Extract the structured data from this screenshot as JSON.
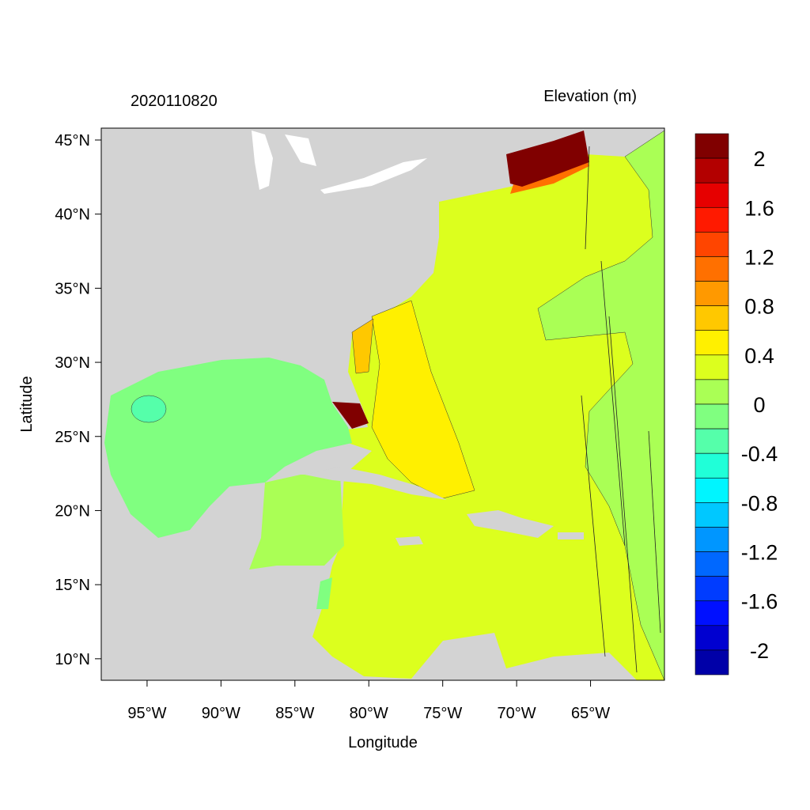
{
  "chart_data": {
    "type": "heatmap",
    "title_left": "2020110820",
    "title_right": "Elevation (m)",
    "xlabel": "Longitude",
    "ylabel": "Latitude",
    "xlim": [
      -98.1,
      -60.0
    ],
    "ylim": [
      8.55,
      45.8
    ],
    "x_ticks": [
      -95,
      -90,
      -85,
      -80,
      -75,
      -70,
      -65
    ],
    "x_tick_labels": [
      "95°W",
      "90°W",
      "85°W",
      "80°W",
      "75°W",
      "70°W",
      "65°W"
    ],
    "y_ticks": [
      45,
      40,
      35,
      30,
      25,
      20,
      15,
      10
    ],
    "y_tick_labels": [
      "45°N",
      "40°N",
      "35°N",
      "30°N",
      "25°N",
      "20°N",
      "15°N",
      "10°N"
    ],
    "land_color": "#d3d3d3",
    "colorbar": {
      "colors": [
        "#800000",
        "#b30000",
        "#e60000",
        "#ff1a00",
        "#ff4500",
        "#ff7000",
        "#ff9900",
        "#ffc800",
        "#fff000",
        "#dcff1e",
        "#aaff55",
        "#80ff80",
        "#55ffaa",
        "#20ffd8",
        "#00f5ff",
        "#00c8ff",
        "#0096ff",
        "#0068ff",
        "#003cff",
        "#0010ff",
        "#0000d0",
        "#0000a8"
      ],
      "labels": [
        "2",
        "1.6",
        "1.2",
        "0.8",
        "0.4",
        "0",
        "-0.4",
        "-0.8",
        "-1.2",
        "-1.6",
        "-2"
      ],
      "label_values": [
        2,
        1.6,
        1.2,
        0.8,
        0.4,
        0,
        -0.4,
        -0.8,
        -1.2,
        -1.6,
        -2
      ]
    }
  }
}
